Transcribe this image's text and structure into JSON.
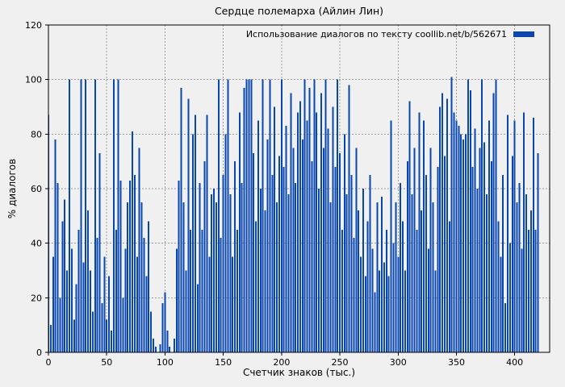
{
  "colors": {
    "bar": "#0946ae",
    "background": "#f0f0f0",
    "grid": "#9a9a9a",
    "border": "#000000",
    "text": "#000000"
  },
  "chart_data": {
    "type": "bar",
    "title": "Сердце полемарха (Айлин Лин)",
    "legend": "Использование диалогов по тексту coollib.net/b/562671",
    "xlabel": "Счетчик знаков (тыс.)",
    "ylabel": "% диалогов",
    "xlim": [
      0,
      430
    ],
    "ylim": [
      0,
      120
    ],
    "xticks": [
      0,
      50,
      100,
      150,
      200,
      250,
      300,
      350,
      400
    ],
    "yticks": [
      0,
      20,
      40,
      60,
      80,
      100,
      120
    ],
    "grid": true,
    "grid_style": "dashed",
    "legend_position": "top-right",
    "bar_color": "#0946ae",
    "x": [
      0,
      2,
      4,
      6,
      8,
      10,
      12,
      14,
      16,
      18,
      20,
      22,
      24,
      26,
      28,
      30,
      32,
      34,
      36,
      38,
      40,
      42,
      44,
      46,
      48,
      50,
      52,
      54,
      56,
      58,
      60,
      62,
      64,
      66,
      68,
      70,
      72,
      74,
      76,
      78,
      80,
      82,
      84,
      86,
      88,
      90,
      92,
      94,
      96,
      98,
      100,
      102,
      104,
      106,
      108,
      110,
      112,
      114,
      116,
      118,
      120,
      122,
      124,
      126,
      128,
      130,
      132,
      134,
      136,
      138,
      140,
      142,
      144,
      146,
      148,
      150,
      152,
      154,
      156,
      158,
      160,
      162,
      164,
      166,
      168,
      170,
      172,
      174,
      176,
      178,
      180,
      182,
      184,
      186,
      188,
      190,
      192,
      194,
      196,
      198,
      200,
      202,
      204,
      206,
      208,
      210,
      212,
      214,
      216,
      218,
      220,
      222,
      224,
      226,
      228,
      230,
      232,
      234,
      236,
      238,
      240,
      242,
      244,
      246,
      248,
      250,
      252,
      254,
      256,
      258,
      260,
      262,
      264,
      266,
      268,
      270,
      272,
      274,
      276,
      278,
      280,
      282,
      284,
      286,
      288,
      290,
      292,
      294,
      296,
      298,
      300,
      302,
      304,
      306,
      308,
      310,
      312,
      314,
      316,
      318,
      320,
      322,
      324,
      326,
      328,
      330,
      332,
      334,
      336,
      338,
      340,
      342,
      344,
      346,
      348,
      350,
      352,
      354,
      356,
      358,
      360,
      362,
      364,
      366,
      368,
      370,
      372,
      374,
      376,
      378,
      380,
      382,
      384,
      386,
      388,
      390,
      392,
      394,
      396,
      398,
      400,
      402,
      404,
      406,
      408,
      410,
      412,
      414,
      416,
      418,
      420
    ],
    "values": [
      87,
      10,
      35,
      78,
      62,
      20,
      48,
      56,
      30,
      100,
      38,
      12,
      25,
      45,
      100,
      33,
      100,
      52,
      30,
      15,
      100,
      42,
      73,
      18,
      35,
      12,
      28,
      8,
      100,
      45,
      100,
      63,
      20,
      38,
      55,
      63,
      81,
      65,
      35,
      75,
      55,
      42,
      28,
      48,
      15,
      5,
      2,
      0,
      3,
      18,
      22,
      8,
      2,
      0,
      5,
      38,
      63,
      97,
      55,
      30,
      93,
      45,
      80,
      87,
      25,
      62,
      45,
      70,
      87,
      35,
      58,
      60,
      55,
      100,
      42,
      65,
      80,
      100,
      58,
      35,
      70,
      45,
      88,
      62,
      97,
      100,
      100,
      100,
      73,
      48,
      85,
      60,
      100,
      52,
      78,
      100,
      65,
      90,
      55,
      72,
      100,
      68,
      83,
      58,
      95,
      75,
      62,
      88,
      92,
      78,
      100,
      85,
      97,
      70,
      100,
      88,
      60,
      95,
      75,
      100,
      82,
      55,
      90,
      68,
      100,
      73,
      45,
      80,
      58,
      98,
      65,
      42,
      75,
      52,
      35,
      60,
      28,
      48,
      65,
      38,
      22,
      55,
      30,
      57,
      33,
      45,
      28,
      85,
      40,
      55,
      35,
      62,
      48,
      30,
      70,
      92,
      58,
      75,
      45,
      88,
      52,
      85,
      65,
      38,
      75,
      55,
      30,
      68,
      90,
      95,
      72,
      93,
      48,
      101,
      88,
      85,
      83,
      80,
      78,
      80,
      100,
      96,
      68,
      82,
      60,
      75,
      100,
      77,
      58,
      85,
      70,
      95,
      100,
      48,
      35,
      65,
      18,
      87,
      40,
      72,
      85,
      55,
      62,
      38,
      88,
      58,
      45,
      52,
      86,
      45,
      73
    ]
  }
}
